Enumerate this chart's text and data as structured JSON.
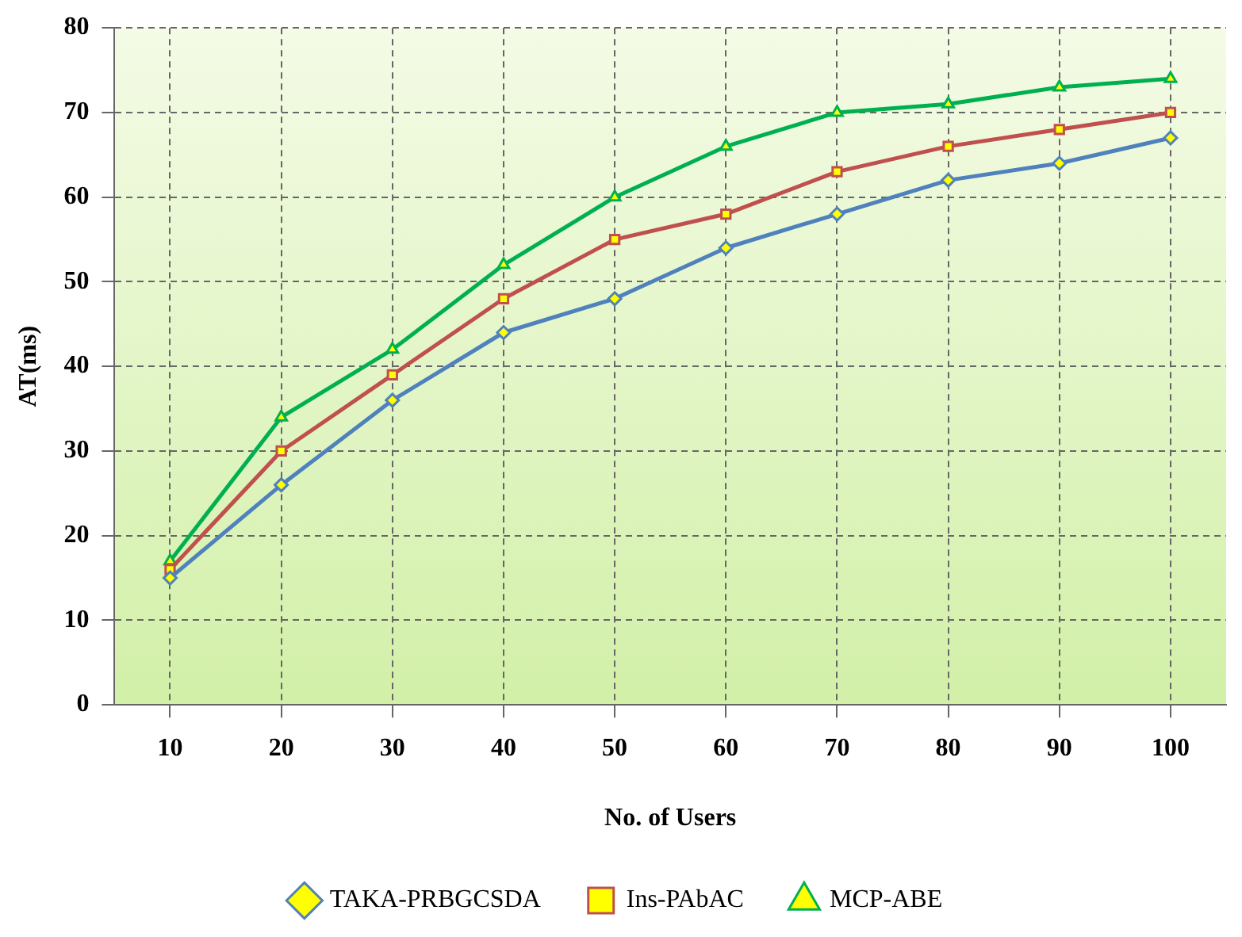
{
  "chart_data": {
    "type": "line",
    "xlabel": "No. of Users",
    "ylabel": "AT(ms)",
    "categories": [
      "10",
      "20",
      "30",
      "40",
      "50",
      "60",
      "70",
      "80",
      "90",
      "100"
    ],
    "ylim": [
      0,
      80
    ],
    "yticks": [
      0,
      10,
      20,
      30,
      40,
      50,
      60,
      70,
      80
    ],
    "grid": true,
    "legend": "bottom",
    "line_style": "solid",
    "series": [
      {
        "name": "TAKA-PRBGCSDA",
        "color": "#4f81bd",
        "marker": "diamond",
        "values": [
          15,
          26,
          36,
          44,
          48,
          54,
          58,
          62,
          64,
          67
        ]
      },
      {
        "name": "Ins-PAbAC",
        "color": "#c0504d",
        "marker": "square",
        "values": [
          16,
          30,
          39,
          48,
          55,
          58,
          63,
          66,
          68,
          70
        ]
      },
      {
        "name": "MCP-ABE",
        "color": "#00b050",
        "marker": "triangle",
        "values": [
          17,
          34,
          42,
          52,
          60,
          66,
          70,
          71,
          73,
          74
        ]
      }
    ]
  }
}
